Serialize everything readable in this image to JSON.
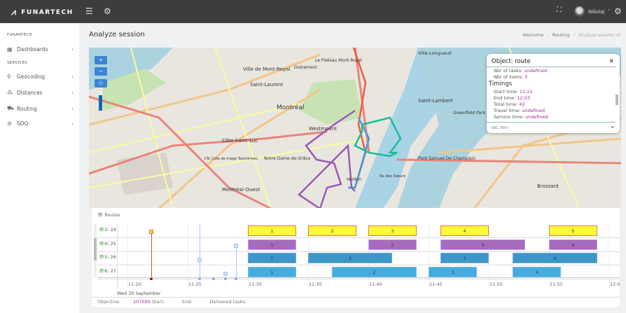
{
  "brand": "FUNARTECH",
  "topbar": {
    "menu_icon": "hamburger-icon",
    "settings_icon": "gear-icon",
    "fullscreen_icon": "expand-icon",
    "user_name": "Nikolaj"
  },
  "sidebar": {
    "section1": "FUNARTECH",
    "section2": "SERVICES",
    "items": [
      {
        "label": "Dashboards",
        "icon": "grid-icon"
      },
      {
        "label": "Geocoding",
        "icon": "pin-icon"
      },
      {
        "label": "Distances",
        "icon": "distance-icon"
      },
      {
        "label": "Routing",
        "icon": "truck-icon"
      },
      {
        "label": "SDO",
        "icon": "compass-icon"
      }
    ]
  },
  "page": {
    "title": "Analyze session",
    "breadcrumb": [
      "Welcome",
      "Routing",
      "Analyze session id"
    ]
  },
  "map": {
    "labels": [
      "Ville de Mont-Royal",
      "Saint-Laurent",
      "Le Plateau Mont-Royal",
      "Outremont",
      "Montréal",
      "Westmount",
      "Côte-Saint-Luc",
      "Notre-Dame-de-Grâce",
      "Montréal-Ouest",
      "Verdun",
      "Île des Sœurs",
      "Saint-Lambert",
      "Greenfield Park",
      "Brossard",
      "Pont Samuel-De Champlain",
      "Ville-Longueuil",
      "CN, Cote de triage Taschereau"
    ],
    "zoom_in": "+",
    "zoom_out": "−",
    "locate": "◇"
  },
  "popup": {
    "title": "Object: route",
    "nbr_tasks_label": "Nbr of tasks:",
    "nbr_tasks": "undefined",
    "nbr_items_label": "Nbr of items:",
    "nbr_items": "5",
    "timings": "Timings",
    "start_label": "Start time:",
    "start": "11:21",
    "end_label": "End time:",
    "end": "12:03",
    "total_label": "Total time:",
    "total": "42",
    "travel_label": "Travel time:",
    "travel": "undefined",
    "service_label": "Service time:",
    "service": "undefined",
    "latlon_placeholder": "lat, lon:"
  },
  "timeline": {
    "header": "Routes",
    "date": "Wed 30 September",
    "ticks": [
      "11:20",
      "11:25",
      "11:30",
      "11:35",
      "11:40",
      "11:45",
      "11:50",
      "11:55",
      "12:0"
    ],
    "rows": [
      {
        "label": "3: 24",
        "color": "#fff93a",
        "border": "#e07b39",
        "tasks": [
          [
            "1",
            "11:30",
            "11:34"
          ],
          [
            "2",
            "11:35",
            "11:39"
          ],
          [
            "3",
            "11:40",
            "11:44"
          ],
          [
            "4",
            "11:46",
            "11:50"
          ],
          [
            "5",
            "11:55",
            "11:59"
          ]
        ]
      },
      {
        "label": "4: 25",
        "color": "#a66bba",
        "border": "#b9a0ff",
        "tasks": [
          [
            "1",
            "11:30",
            "11:34"
          ],
          [
            "2",
            "11:40",
            "11:44"
          ],
          [
            "3",
            "11:46",
            "11:53"
          ],
          [
            "4",
            "11:55",
            "11:59"
          ]
        ]
      },
      {
        "label": "5: 26",
        "color": "#3d97c6",
        "border": "#6fa8e8",
        "tasks": [
          [
            "1",
            "11:30",
            "11:34"
          ],
          [
            "2",
            "11:35",
            "11:42"
          ],
          [
            "3",
            "11:46",
            "11:50"
          ],
          [
            "4",
            "11:52",
            "11:59"
          ]
        ]
      },
      {
        "label": "6: 27",
        "color": "#45acde",
        "border": "#7fb8f0",
        "tasks": [
          [
            "1",
            "11:30",
            "11:34"
          ],
          [
            "2",
            "11:37",
            "11:44"
          ],
          [
            "3",
            "11:45",
            "11:49"
          ],
          [
            "4",
            "11:52",
            "11:56"
          ]
        ]
      }
    ]
  },
  "footer": {
    "objective_label": "Objective:",
    "objective": "107099",
    "start_label": "Start:",
    "end_label": "End:",
    "delivered_label": "Delivered tasks:"
  }
}
